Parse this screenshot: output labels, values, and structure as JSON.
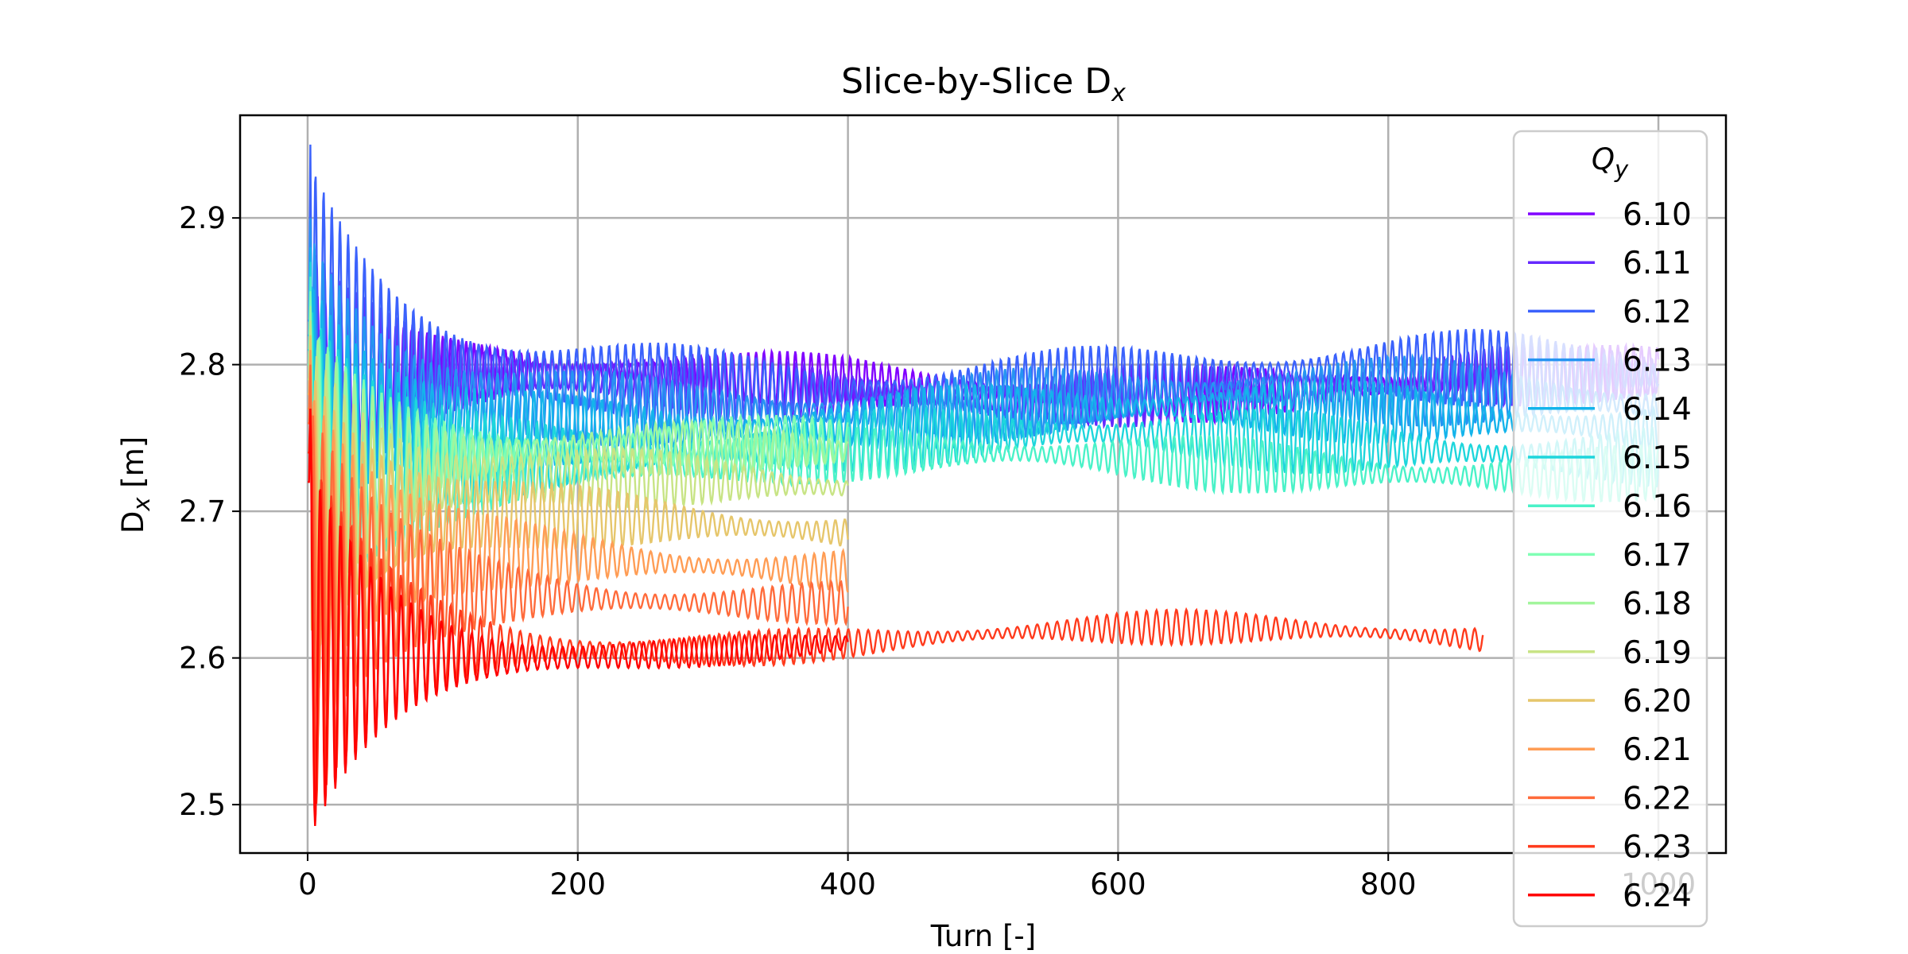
{
  "chart_data": {
    "type": "line",
    "title": "Slice-by-Slice D",
    "title_subscript": "x",
    "xlabel": "Turn [-]",
    "ylabel": "D",
    "ylabel_subscript": "x",
    "ylabel_unit": " [m]",
    "xlim": [
      -50,
      1050
    ],
    "ylim": [
      2.467,
      2.97
    ],
    "xticks": [
      0,
      200,
      400,
      600,
      800,
      1000
    ],
    "xtick_labels": [
      "0",
      "200",
      "400",
      "600",
      "800",
      "1000"
    ],
    "yticks": [
      2.5,
      2.6,
      2.7,
      2.8,
      2.9
    ],
    "ytick_labels": [
      "2.5",
      "2.6",
      "2.7",
      "2.8",
      "2.9"
    ],
    "grid": true,
    "legend_title": "Q",
    "legend_title_subscript": "y",
    "legend_position": "right",
    "series": [
      {
        "name": "6.10",
        "color": "#8000ff",
        "start": 2.81,
        "peak": 2.86,
        "center": 2.787,
        "amp": 0.016,
        "x_end": 1000
      },
      {
        "name": "6.11",
        "color": "#6629fe",
        "start": 2.82,
        "peak": 2.88,
        "center": 2.785,
        "amp": 0.018,
        "x_end": 1000
      },
      {
        "name": "6.12",
        "color": "#3b62fc",
        "start": 2.83,
        "peak": 2.95,
        "center": 2.79,
        "amp": 0.022,
        "x_end": 1000
      },
      {
        "name": "6.13",
        "color": "#2694f2",
        "start": 2.82,
        "peak": 2.9,
        "center": 2.775,
        "amp": 0.02,
        "x_end": 1000
      },
      {
        "name": "6.14",
        "color": "#14b4eb",
        "start": 2.81,
        "peak": 2.88,
        "center": 2.763,
        "amp": 0.018,
        "x_end": 1000
      },
      {
        "name": "6.15",
        "color": "#1ed6dc",
        "start": 2.8,
        "peak": 2.87,
        "center": 2.745,
        "amp": 0.018,
        "x_end": 1000
      },
      {
        "name": "6.16",
        "color": "#4af2c8",
        "start": 2.8,
        "peak": 2.86,
        "center": 2.732,
        "amp": 0.016,
        "x_end": 1000
      },
      {
        "name": "6.17",
        "color": "#80ffb4",
        "start": 2.79,
        "peak": 2.85,
        "center": 2.74,
        "amp": 0.015,
        "x_end": 400
      },
      {
        "name": "6.18",
        "color": "#a2f59c",
        "start": 2.79,
        "peak": 2.84,
        "center": 2.735,
        "amp": 0.015,
        "x_end": 400
      },
      {
        "name": "6.19",
        "color": "#c8e485",
        "start": 2.78,
        "peak": 2.83,
        "center": 2.715,
        "amp": 0.016,
        "x_end": 400
      },
      {
        "name": "6.20",
        "color": "#e6c66b",
        "start": 2.78,
        "peak": 2.82,
        "center": 2.69,
        "amp": 0.016,
        "x_end": 400
      },
      {
        "name": "6.21",
        "color": "#ff9d55",
        "start": 2.77,
        "peak": 2.81,
        "center": 2.667,
        "amp": 0.014,
        "x_end": 400
      },
      {
        "name": "6.22",
        "color": "#ff6b3b",
        "start": 2.76,
        "peak": 2.8,
        "center": 2.645,
        "amp": 0.012,
        "x_end": 400
      },
      {
        "name": "6.23",
        "color": "#ff3b1d",
        "start": 2.74,
        "peak": 2.77,
        "center": 2.613,
        "amp": 0.01,
        "x_end": 870
      },
      {
        "name": "6.24",
        "color": "#ff0000",
        "start": 2.72,
        "peak": 2.77,
        "center": 2.608,
        "amp": 0.008,
        "x_end": 400
      }
    ]
  }
}
